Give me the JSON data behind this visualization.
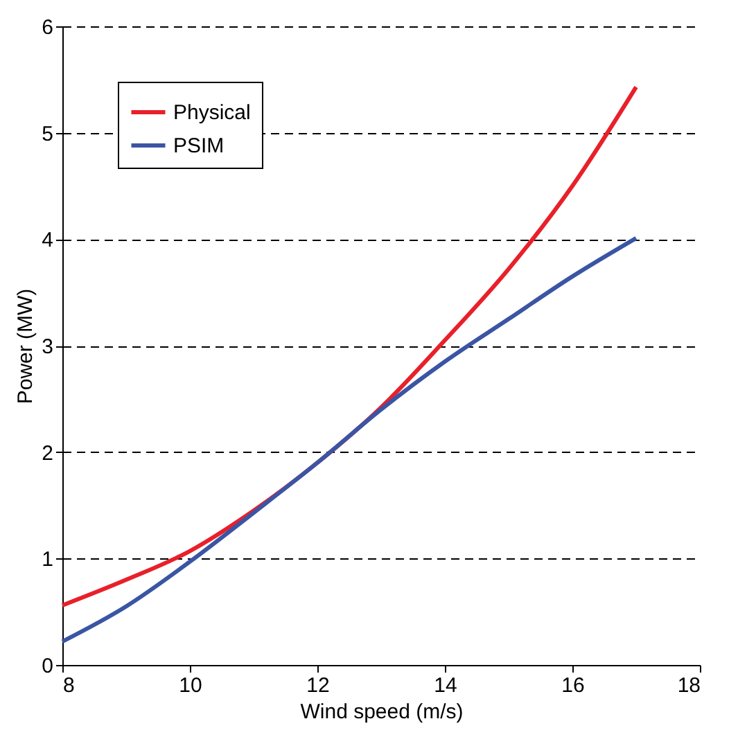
{
  "chart_data": {
    "type": "line",
    "xlabel": "Wind speed (m/s)",
    "ylabel": "Power (MW)",
    "x": [
      8,
      9,
      10,
      11,
      12,
      13,
      14,
      15,
      16,
      17
    ],
    "series": [
      {
        "name": "Physical",
        "color": "#e8202a",
        "values": [
          0.56,
          0.8,
          1.07,
          1.45,
          1.9,
          2.42,
          3.05,
          3.72,
          4.5,
          5.43
        ]
      },
      {
        "name": "PSIM",
        "color": "#3a55a4",
        "values": [
          0.22,
          0.55,
          0.97,
          1.43,
          1.9,
          2.4,
          2.85,
          3.25,
          3.65,
          4.01
        ]
      }
    ],
    "xlim": [
      8,
      18
    ],
    "xticks": [
      8,
      10,
      12,
      14,
      16,
      18
    ],
    "ylim": [
      0,
      6
    ],
    "yticks": [
      0,
      1,
      2,
      3,
      4,
      5,
      6
    ],
    "grid": "y",
    "legend": "top left",
    "line_style": "solid",
    "marker": "none"
  }
}
